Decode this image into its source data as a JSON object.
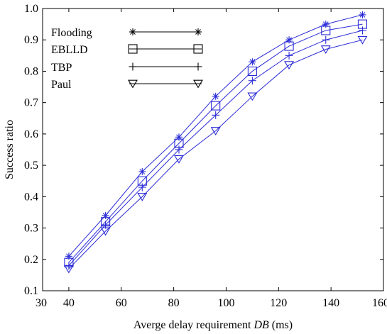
{
  "chart_data": {
    "type": "line",
    "xlabel_prefix": "Averge delay requirement ",
    "xlabel_italic": "DB",
    "xlabel_suffix": " (ms)",
    "ylabel": "Success ratio",
    "xlim": [
      30,
      160
    ],
    "ylim": [
      0.1,
      1.0
    ],
    "xticks": [
      30,
      40,
      60,
      80,
      100,
      120,
      140,
      160
    ],
    "yticks": [
      0.1,
      0.2,
      0.3,
      0.4,
      0.5,
      0.6,
      0.7,
      0.8,
      0.9,
      1.0
    ],
    "grid": false,
    "legend_position": "top-left",
    "x": [
      40,
      54,
      68,
      82,
      96,
      110,
      124,
      138,
      152
    ],
    "series": [
      {
        "name": "Flooding",
        "marker": "star",
        "values": [
          0.21,
          0.34,
          0.48,
          0.59,
          0.72,
          0.83,
          0.9,
          0.95,
          0.98
        ]
      },
      {
        "name": "EBLLD",
        "marker": "square",
        "values": [
          0.19,
          0.32,
          0.45,
          0.57,
          0.69,
          0.8,
          0.88,
          0.93,
          0.95
        ]
      },
      {
        "name": "TBP",
        "marker": "plus",
        "values": [
          0.18,
          0.31,
          0.43,
          0.55,
          0.66,
          0.77,
          0.85,
          0.9,
          0.93
        ]
      },
      {
        "name": "Paul",
        "marker": "triangle-down",
        "values": [
          0.17,
          0.29,
          0.4,
          0.52,
          0.61,
          0.72,
          0.82,
          0.87,
          0.9
        ]
      }
    ],
    "line_color": "#2b2bd6",
    "legend_line_color": "#000000"
  }
}
